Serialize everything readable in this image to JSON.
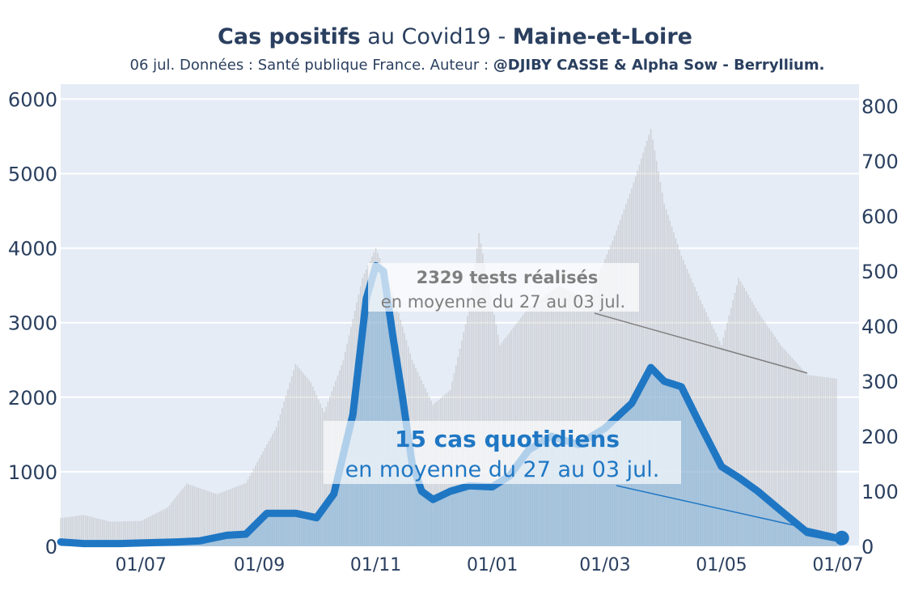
{
  "header": {
    "title_bold_1": "Cas positifs",
    "title_mid": " au Covid19 - ",
    "title_bold_2": "Maine-et-Loire",
    "subtitle_text": "06 jul. Données : Santé publique France. Auteur : ",
    "subtitle_bold": "@DJIBY CASSE & Alpha Sow - Berryllium."
  },
  "annotations": {
    "tests_value": "2329 tests réalisés",
    "tests_period": "en moyenne du 27 au 03 jul.",
    "cases_value": "15 cas quotidiens",
    "cases_period": "en moyenne du 27 au 03 jul."
  },
  "colors": {
    "plot_bg": "#e5ecf6",
    "grid": "#ffffff",
    "cases_line": "#1f77c4",
    "cases_line_highlight": "#a6cfee",
    "cases_fill": "#7fb0d8",
    "tests_bars": "#bdbdbd",
    "text": "#2a3f5f"
  },
  "chart_data": {
    "type": "line",
    "x_axis": {
      "type": "date",
      "range": [
        "2020-05-20",
        "2021-07-12"
      ],
      "tick_labels": [
        "01/07",
        "01/09",
        "01/11",
        "01/01",
        "01/03",
        "01/05",
        "01/07"
      ],
      "tick_dates": [
        "2020-07-01",
        "2020-09-01",
        "2020-11-01",
        "2021-01-01",
        "2021-03-01",
        "2021-05-01",
        "2021-07-01"
      ]
    },
    "y_left": {
      "range": [
        0,
        6200
      ],
      "ticks": [
        0,
        1000,
        2000,
        3000,
        4000,
        5000,
        6000
      ]
    },
    "y_right": {
      "range": [
        0,
        840
      ],
      "ticks": [
        0,
        100,
        200,
        300,
        400,
        500,
        600,
        700,
        800
      ]
    },
    "grid": true,
    "series": [
      {
        "type": "bar",
        "axis": "left",
        "points": [
          [
            "2020-05-20",
            380
          ],
          [
            "2020-06-01",
            420
          ],
          [
            "2020-06-15",
            330
          ],
          [
            "2020-07-01",
            340
          ],
          [
            "2020-07-15",
            520
          ],
          [
            "2020-07-25",
            840
          ],
          [
            "2020-08-10",
            700
          ],
          [
            "2020-08-25",
            850
          ],
          [
            "2020-09-10",
            1600
          ],
          [
            "2020-09-20",
            2450
          ],
          [
            "2020-09-28",
            2200
          ],
          [
            "2020-10-05",
            1800
          ],
          [
            "2020-10-15",
            2500
          ],
          [
            "2020-10-25",
            3600
          ],
          [
            "2020-11-01",
            4000
          ],
          [
            "2020-11-10",
            3400
          ],
          [
            "2020-11-20",
            2500
          ],
          [
            "2020-12-01",
            1900
          ],
          [
            "2020-12-10",
            2100
          ],
          [
            "2020-12-20",
            3200
          ],
          [
            "2020-12-25",
            4200
          ],
          [
            "2021-01-05",
            2700
          ],
          [
            "2021-01-20",
            3200
          ],
          [
            "2021-02-05",
            3500
          ],
          [
            "2021-02-20",
            3300
          ],
          [
            "2021-03-05",
            4100
          ],
          [
            "2021-03-15",
            4800
          ],
          [
            "2021-03-25",
            5600
          ],
          [
            "2021-04-01",
            4600
          ],
          [
            "2021-04-10",
            3900
          ],
          [
            "2021-04-20",
            3300
          ],
          [
            "2021-05-01",
            2700
          ],
          [
            "2021-05-10",
            3600
          ],
          [
            "2021-05-20",
            3150
          ],
          [
            "2021-06-01",
            2700
          ],
          [
            "2021-06-15",
            2300
          ],
          [
            "2021-06-30",
            2250
          ]
        ]
      },
      {
        "type": "area",
        "axis": "right",
        "points": [
          [
            "2020-05-20",
            8
          ],
          [
            "2020-06-01",
            5
          ],
          [
            "2020-06-20",
            5
          ],
          [
            "2020-07-01",
            6
          ],
          [
            "2020-07-20",
            8
          ],
          [
            "2020-08-01",
            10
          ],
          [
            "2020-08-15",
            20
          ],
          [
            "2020-08-25",
            22
          ],
          [
            "2020-09-05",
            60
          ],
          [
            "2020-09-20",
            60
          ],
          [
            "2020-10-01",
            52
          ],
          [
            "2020-10-10",
            95
          ],
          [
            "2020-10-20",
            240
          ],
          [
            "2020-10-27",
            450
          ],
          [
            "2020-11-01",
            510
          ],
          [
            "2020-11-05",
            500
          ],
          [
            "2020-11-10",
            380
          ],
          [
            "2020-11-15",
            270
          ],
          [
            "2020-11-20",
            150
          ],
          [
            "2020-11-25",
            100
          ],
          [
            "2020-12-01",
            85
          ],
          [
            "2020-12-10",
            100
          ],
          [
            "2020-12-20",
            110
          ],
          [
            "2021-01-01",
            108
          ],
          [
            "2021-01-10",
            128
          ],
          [
            "2021-01-20",
            175
          ],
          [
            "2021-02-01",
            200
          ],
          [
            "2021-02-15",
            185
          ],
          [
            "2021-03-01",
            215
          ],
          [
            "2021-03-15",
            260
          ],
          [
            "2021-03-25",
            325
          ],
          [
            "2021-04-01",
            300
          ],
          [
            "2021-04-10",
            290
          ],
          [
            "2021-04-20",
            220
          ],
          [
            "2021-05-01",
            145
          ],
          [
            "2021-05-10",
            125
          ],
          [
            "2021-05-20",
            100
          ],
          [
            "2021-06-01",
            65
          ],
          [
            "2021-06-15",
            25
          ],
          [
            "2021-06-30",
            15
          ],
          [
            "2021-07-03",
            15
          ]
        ]
      }
    ]
  }
}
